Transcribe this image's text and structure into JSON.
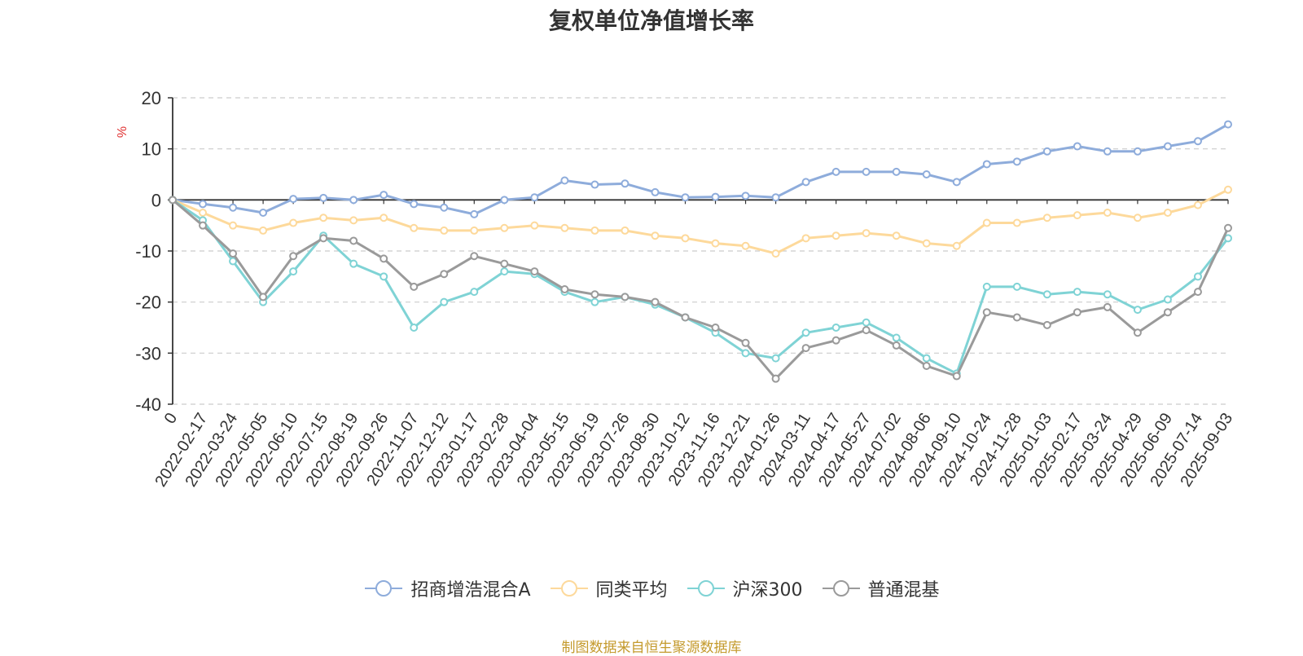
{
  "chart_data": {
    "type": "line",
    "title": "复权单位净值增长率",
    "ylabel": "%",
    "ylim": [
      -40,
      20
    ],
    "yticks": [
      20,
      10,
      0,
      -10,
      -20,
      -30,
      -40
    ],
    "grid": true,
    "legend_position": "bottom",
    "x_tick_labels": [
      "0",
      "2022-02-17",
      "2022-03-24",
      "2022-05-05",
      "2022-06-10",
      "2022-07-15",
      "2022-08-19",
      "2022-09-26",
      "2022-11-07",
      "2022-12-12",
      "2023-01-17",
      "2023-02-28",
      "2023-04-04",
      "2023-05-15",
      "2023-06-19",
      "2023-07-26",
      "2023-08-30",
      "2023-10-12",
      "2023-11-16",
      "2023-12-21",
      "2024-01-26",
      "2024-03-11",
      "2024-04-17",
      "2024-05-27",
      "2024-07-02",
      "2024-08-06",
      "2024-09-10",
      "2024-10-24",
      "2024-11-28",
      "2025-01-03",
      "2025-02-17",
      "2025-03-24",
      "2025-04-29",
      "2025-06-09",
      "2025-07-14",
      "2025-09-03"
    ],
    "series": [
      {
        "name": "招商增浩混合A",
        "color": "#8eacdb",
        "values": [
          0,
          -0.8,
          -1.5,
          -2.5,
          0.2,
          0.4,
          0,
          1.0,
          -0.8,
          -1.5,
          -2.8,
          0,
          0.5,
          3.8,
          3.0,
          3.2,
          1.5,
          0.5,
          0.6,
          0.8,
          0.5,
          3.5,
          5.5,
          5.5,
          5.5,
          5.0,
          3.5,
          7.0,
          7.5,
          9.5,
          10.5,
          9.5,
          9.5,
          10.5,
          11.5,
          14.8
        ]
      },
      {
        "name": "同类平均",
        "color": "#fdd99b",
        "values": [
          0,
          -2.5,
          -5,
          -6,
          -4.5,
          -3.5,
          -4,
          -3.5,
          -5.5,
          -6,
          -6,
          -5.5,
          -5,
          -5.5,
          -6,
          -6,
          -7,
          -7.5,
          -8.5,
          -9,
          -10.5,
          -7.5,
          -7,
          -6.5,
          -7,
          -8.5,
          -9,
          -4.5,
          -4.5,
          -3.5,
          -3,
          -2.5,
          -3.5,
          -2.5,
          -1,
          2
        ]
      },
      {
        "name": "沪深300",
        "color": "#7fd3d5",
        "values": [
          0,
          -4,
          -12,
          -20,
          -14,
          -7,
          -12.5,
          -15,
          -25,
          -20,
          -18,
          -14,
          -14.5,
          -18,
          -20,
          -19,
          -20.5,
          -23,
          -26,
          -30,
          -31,
          -26,
          -25,
          -24,
          -27,
          -31,
          -34,
          -17,
          -17,
          -18.5,
          -18,
          -18.5,
          -21.5,
          -19.5,
          -15,
          -7.5
        ]
      },
      {
        "name": "普通混基",
        "color": "#9a9a9a",
        "values": [
          0,
          -5,
          -10.5,
          -19,
          -11,
          -7.5,
          -8,
          -11.5,
          -17,
          -14.5,
          -11,
          -12.5,
          -14,
          -17.5,
          -18.5,
          -19,
          -20,
          -23,
          -25,
          -28,
          -35,
          -29,
          -27.5,
          -25.5,
          -28.5,
          -32.5,
          -34.5,
          -22,
          -23,
          -24.5,
          -22,
          -21,
          -26,
          -22,
          -18,
          -5.5
        ]
      }
    ]
  },
  "footer": {
    "source": "制图数据来自恒生聚源数据库"
  }
}
